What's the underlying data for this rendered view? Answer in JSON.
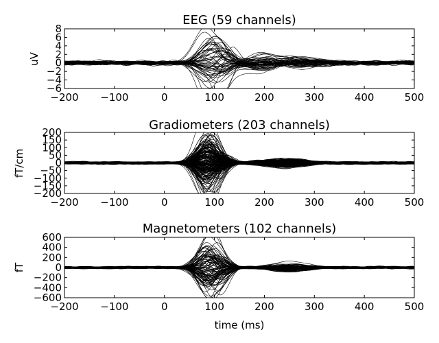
{
  "chart_data": [
    {
      "type": "line",
      "title": "EEG (59 channels)",
      "xlabel": "",
      "ylabel": "uV",
      "xlim": [
        -200,
        500
      ],
      "ylim": [
        -6,
        8
      ],
      "xticks": [
        -200,
        -100,
        0,
        100,
        200,
        300,
        400,
        500
      ],
      "xtick_labels": [
        "−200",
        "−100",
        "0",
        "100",
        "200",
        "300",
        "400",
        "500"
      ],
      "yticks": [
        -6,
        -4,
        -2,
        0,
        2,
        4,
        6,
        8
      ],
      "ytick_labels": [
        "−6",
        "−4",
        "−2",
        "0",
        "2",
        "4",
        "6",
        "8"
      ],
      "n_channels": 59,
      "grid": false,
      "components": [
        {
          "t": 95,
          "w": 22,
          "max_amp": 6.8
        },
        {
          "t": 120,
          "w": 15,
          "max_amp": 3.0
        },
        {
          "t": 190,
          "w": 30,
          "max_amp": 2.2
        },
        {
          "t": 270,
          "w": 40,
          "max_amp": 1.3
        }
      ],
      "noise_amp": 0.8
    },
    {
      "type": "line",
      "title": "Gradiometers (203 channels)",
      "xlabel": "",
      "ylabel": "fT/cm",
      "xlim": [
        -200,
        500
      ],
      "ylim": [
        -200,
        200
      ],
      "xticks": [
        -200,
        -100,
        0,
        100,
        200,
        300,
        400,
        500
      ],
      "xtick_labels": [
        "−200",
        "−100",
        "0",
        "100",
        "200",
        "300",
        "400",
        "500"
      ],
      "yticks": [
        -200,
        -150,
        -100,
        -50,
        0,
        50,
        100,
        150,
        200
      ],
      "ytick_labels": [
        "−200",
        "−150",
        "−100",
        "−50",
        "0",
        "50",
        "100",
        "150",
        "200"
      ],
      "n_channels": 203,
      "grid": false,
      "components": [
        {
          "t": 85,
          "w": 18,
          "max_amp": 185
        },
        {
          "t": 110,
          "w": 15,
          "max_amp": 60
        },
        {
          "t": 240,
          "w": 40,
          "max_amp": 25
        }
      ],
      "noise_amp": 12
    },
    {
      "type": "line",
      "title": "Magnetometers (102 channels)",
      "xlabel": "time (ms)",
      "ylabel": "fT",
      "xlim": [
        -200,
        500
      ],
      "ylim": [
        -600,
        600
      ],
      "xticks": [
        -200,
        -100,
        0,
        100,
        200,
        300,
        400,
        500
      ],
      "xtick_labels": [
        "−200",
        "−100",
        "0",
        "100",
        "200",
        "300",
        "400",
        "500"
      ],
      "yticks": [
        -600,
        -400,
        -200,
        0,
        200,
        400,
        600
      ],
      "ytick_labels": [
        "−600",
        "−400",
        "−200",
        "0",
        "200",
        "400",
        "600"
      ],
      "n_channels": 102,
      "grid": false,
      "components": [
        {
          "t": 85,
          "w": 18,
          "max_amp": 520
        },
        {
          "t": 110,
          "w": 16,
          "max_amp": 300
        },
        {
          "t": 250,
          "w": 35,
          "max_amp": 90
        }
      ],
      "noise_amp": 35
    }
  ],
  "colors": {
    "background": "#ffffff",
    "trace": "#000000"
  }
}
